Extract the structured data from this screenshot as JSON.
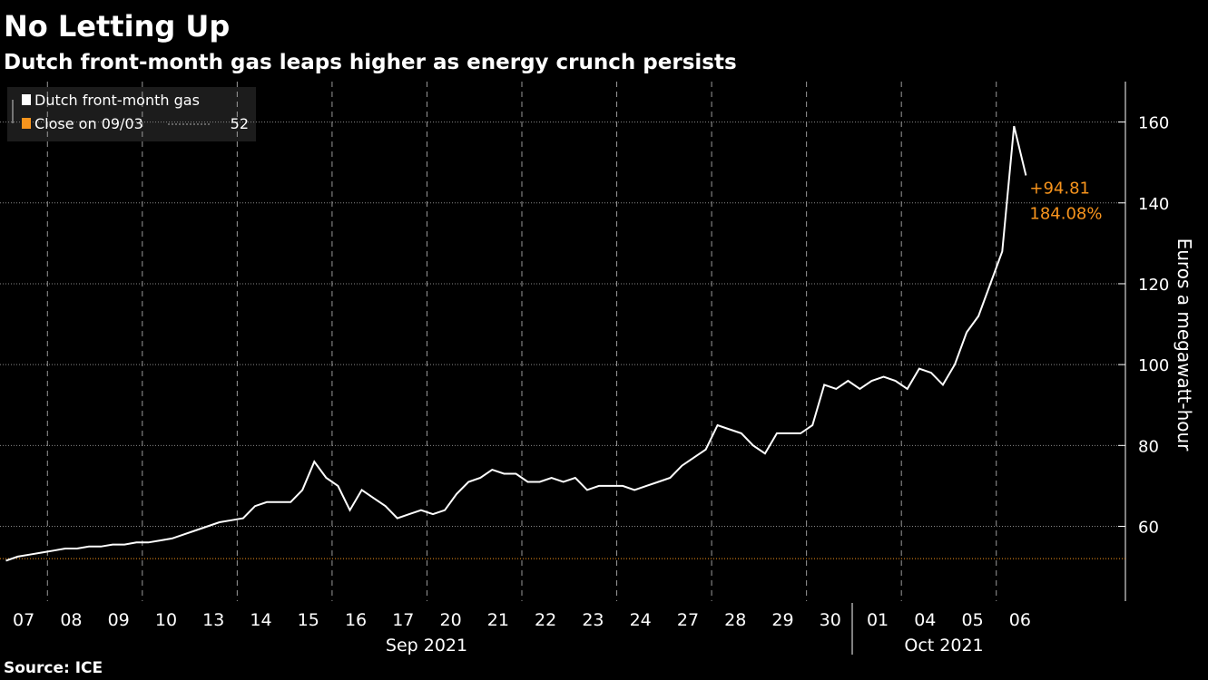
{
  "chart_data": {
    "type": "line",
    "title": "No Letting Up",
    "subtitle": "Dutch front-month gas leaps higher as energy crunch persists",
    "source": "Source: ICE",
    "y_axis_label": "Euros a megawatt-hour",
    "month_labels": [
      "Sep 2021",
      "Oct 2021"
    ],
    "categories": [
      null,
      null,
      "07",
      null,
      null,
      null,
      "08",
      null,
      null,
      null,
      "09",
      null,
      null,
      null,
      "10",
      null,
      null,
      null,
      "13",
      null,
      null,
      null,
      "14",
      null,
      null,
      null,
      "15",
      null,
      null,
      null,
      "16",
      null,
      null,
      null,
      "17",
      null,
      null,
      null,
      "20",
      null,
      null,
      null,
      "21",
      null,
      null,
      null,
      "22",
      null,
      null,
      null,
      "23",
      null,
      null,
      null,
      "24",
      null,
      null,
      null,
      "27",
      null,
      null,
      null,
      "28",
      null,
      null,
      null,
      "29",
      null,
      null,
      null,
      "30",
      null,
      null,
      null,
      "01",
      null,
      null,
      null,
      "04",
      null,
      null,
      null,
      "05",
      null,
      null,
      null,
      "06",
      null
    ],
    "series": [
      {
        "name": "Dutch front-month gas",
        "color": "#ffffff",
        "values": [
          51.5,
          52.5,
          53,
          53.5,
          54,
          54.5,
          54.5,
          55,
          55,
          55.5,
          55.5,
          56,
          56,
          56.5,
          57,
          58,
          59,
          60,
          61,
          61.5,
          62,
          65,
          66,
          66,
          66,
          69,
          76,
          72,
          70,
          64,
          69,
          67,
          65,
          62,
          63,
          64,
          63,
          64,
          68,
          71,
          72,
          74,
          73,
          73,
          71,
          71,
          72,
          71,
          72,
          69,
          70,
          70,
          70,
          69,
          70,
          71,
          72,
          75,
          77,
          79,
          85,
          84,
          83,
          80,
          78,
          83,
          83,
          83,
          85,
          95,
          94,
          96,
          94,
          96,
          97,
          96,
          94,
          99,
          98,
          95,
          100,
          108,
          112,
          120,
          128,
          159,
          146.8,
          null
        ]
      }
    ],
    "reference": {
      "name": "Close on 09/03",
      "value": 52,
      "color": "#f7941d"
    },
    "annotation": {
      "color": "#f7941d",
      "change": "+94.81",
      "percent": "184.08%"
    },
    "ylim": [
      41.5,
      170
    ],
    "yticks": [
      60,
      80,
      100,
      120,
      140,
      160
    ],
    "grid": true
  }
}
